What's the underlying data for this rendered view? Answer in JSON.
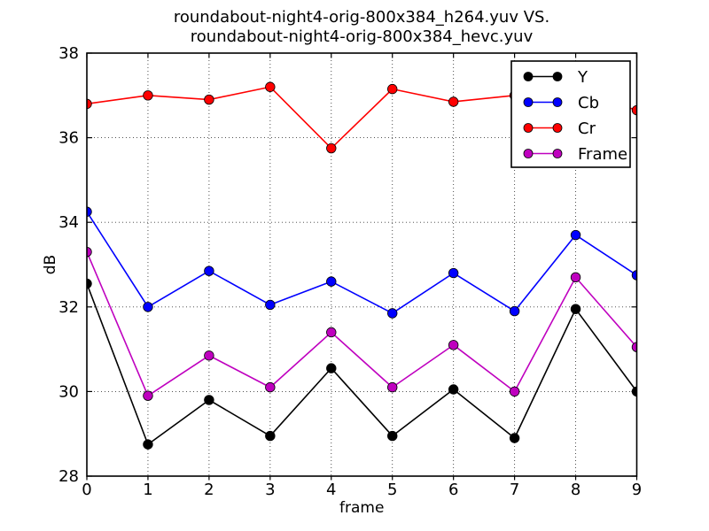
{
  "chart_data": {
    "type": "line",
    "title_lines": [
      "roundabout-night4-orig-800x384_h264.yuv VS.",
      "roundabout-night4-orig-800x384_hevc.yuv"
    ],
    "xlabel": "frame",
    "ylabel": "dB",
    "xlim": [
      0,
      9
    ],
    "ylim": [
      28,
      38
    ],
    "xticks": [
      0,
      1,
      2,
      3,
      4,
      5,
      6,
      7,
      8,
      9
    ],
    "yticks": [
      28,
      30,
      32,
      34,
      36,
      38
    ],
    "grid": "dotted",
    "legend_position": "upper right",
    "background_color": "#ffffff",
    "x": [
      0,
      1,
      2,
      3,
      4,
      5,
      6,
      7,
      8,
      9
    ],
    "series": [
      {
        "name": "Y",
        "color": "#000000",
        "values": [
          32.55,
          28.75,
          29.8,
          28.95,
          30.55,
          28.95,
          30.05,
          28.9,
          31.95,
          30.0
        ]
      },
      {
        "name": "Cb",
        "color": "#0000ff",
        "values": [
          34.25,
          32.0,
          32.85,
          32.05,
          32.6,
          31.85,
          32.8,
          31.9,
          33.7,
          32.75
        ]
      },
      {
        "name": "Cr",
        "color": "#ff0000",
        "values": [
          36.8,
          37.0,
          36.9,
          37.2,
          35.75,
          37.15,
          36.85,
          37.0,
          37.1,
          36.65
        ]
      },
      {
        "name": "Frame",
        "color": "#bf00bf",
        "values": [
          33.3,
          29.9,
          30.85,
          30.1,
          31.4,
          30.1,
          31.1,
          30.0,
          32.7,
          31.05
        ]
      }
    ]
  }
}
